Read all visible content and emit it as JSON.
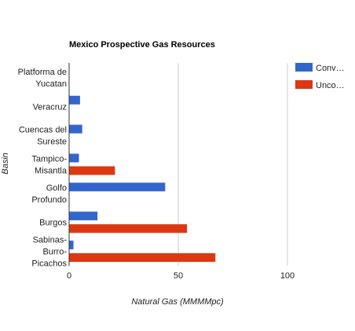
{
  "chart_data": {
    "type": "bar",
    "orientation": "horizontal",
    "title": "Mexico Prospective Gas Resources",
    "xlabel": "Natural Gas (MMMMpc)",
    "ylabel": "Basin",
    "categories": [
      [
        "Platforma de",
        "Yucatan"
      ],
      [
        "Veracruz"
      ],
      [
        "Cuencas del",
        "Sureste"
      ],
      [
        "Tampico-",
        "Misantla"
      ],
      [
        "Golfo",
        "Profundo"
      ],
      [
        "Burgos"
      ],
      [
        "Sabinas-",
        "Burro-",
        "Picachos"
      ]
    ],
    "series": [
      {
        "name": "Conv…",
        "color": "#3366cc",
        "values": [
          0,
          5,
          6,
          4.5,
          44,
          13,
          2
        ]
      },
      {
        "name": "Unco…",
        "color": "#dc3912",
        "values": [
          0,
          0,
          0,
          21,
          0,
          54,
          67
        ]
      }
    ],
    "xlim": [
      0,
      100
    ],
    "xticks": [
      0,
      50,
      100
    ],
    "grid": true,
    "legend_position": "right"
  }
}
